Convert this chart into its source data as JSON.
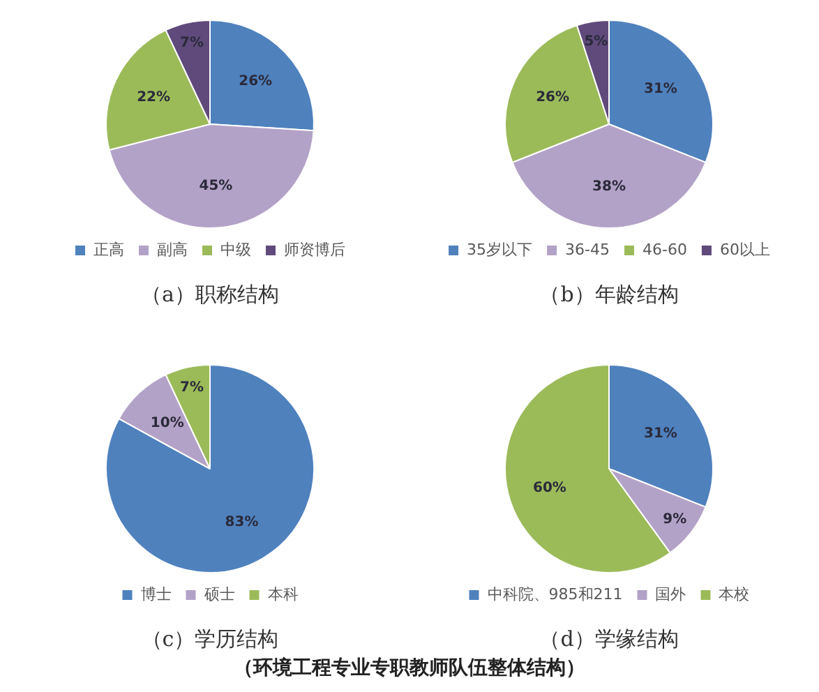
{
  "chart_data": [
    {
      "type": "pie",
      "title": "（a）职称结构",
      "categories": [
        "正高",
        "副高",
        "中级",
        "师资博后"
      ],
      "values": [
        26,
        45,
        22,
        7
      ],
      "colors": [
        "#4f81bd",
        "#b3a2c7",
        "#9bbb59",
        "#604a7b"
      ],
      "value_labels": [
        "26%",
        "45%",
        "22%",
        "7%"
      ],
      "legend": "bottom"
    },
    {
      "type": "pie",
      "title": "（b）年龄结构",
      "categories": [
        "35岁以下",
        "36-45",
        "46-60",
        "60以上"
      ],
      "values": [
        31,
        38,
        26,
        5
      ],
      "colors": [
        "#4f81bd",
        "#b3a2c7",
        "#9bbb59",
        "#604a7b"
      ],
      "value_labels": [
        "31%",
        "38%",
        "26%",
        "5%"
      ],
      "legend": "bottom"
    },
    {
      "type": "pie",
      "title": "（c）学历结构",
      "categories": [
        "博士",
        "硕士",
        "本科"
      ],
      "values": [
        83,
        10,
        7
      ],
      "colors": [
        "#4f81bd",
        "#b3a2c7",
        "#9bbb59"
      ],
      "value_labels": [
        "83%",
        "10%",
        "7%"
      ],
      "legend": "bottom"
    },
    {
      "type": "pie",
      "title": "（d）学缘结构",
      "categories": [
        "中科院、985和211",
        "国外",
        "本校"
      ],
      "values": [
        31,
        9,
        60
      ],
      "colors": [
        "#4f81bd",
        "#b3a2c7",
        "#9bbb59"
      ],
      "value_labels": [
        "31%",
        "9%",
        "60%"
      ],
      "legend": "bottom",
      "annotations": [
        "（环境工程专业专职教师队伍整体结构）"
      ]
    }
  ]
}
